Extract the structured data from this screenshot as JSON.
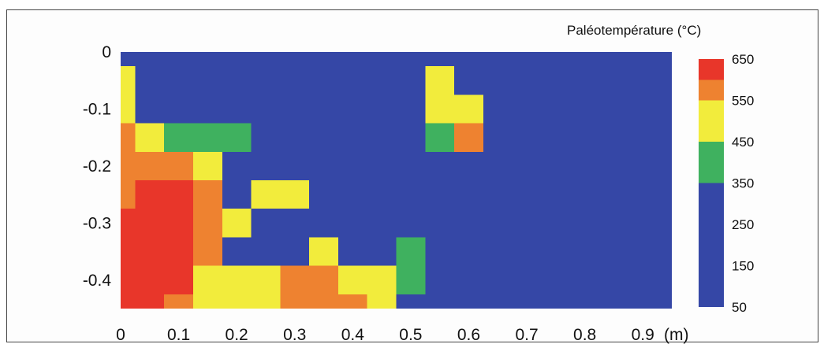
{
  "chart_data": {
    "type": "heatmap",
    "title": "",
    "xlabel": "",
    "ylabel": "",
    "x_unit": "(m)",
    "x_ticks": [
      0,
      0.1,
      0.2,
      0.3,
      0.4,
      0.5,
      0.6,
      0.7,
      0.8,
      0.9
    ],
    "x_tick_labels": [
      "0",
      "0.1",
      "0.2",
      "0.3",
      "0.4",
      "0.5",
      "0.6",
      "0.7",
      "0.8",
      "0.9"
    ],
    "y_ticks": [
      0,
      -0.1,
      -0.2,
      -0.3,
      -0.4
    ],
    "y_tick_labels": [
      "0",
      "-0.1",
      "-0.2",
      "-0.3",
      "-0.4"
    ],
    "xlim": [
      0,
      0.95
    ],
    "ylim": [
      -0.45,
      0
    ],
    "background_value": 200,
    "colorbar": {
      "title": "Paléotempérature (°C)",
      "ticks": [
        650,
        550,
        450,
        350,
        250,
        150,
        50
      ],
      "bands": [
        {
          "min": 50,
          "max": 350,
          "color": "#3547a6"
        },
        {
          "min": 350,
          "max": 450,
          "color": "#3fb15f"
        },
        {
          "min": 450,
          "max": 550,
          "color": "#f2ec3c"
        },
        {
          "min": 550,
          "max": 600,
          "color": "#ee8230"
        },
        {
          "min": 600,
          "max": 650,
          "color": "#e8362a"
        }
      ]
    },
    "cells": [
      {
        "x0": 0.0,
        "x1": 0.025,
        "y0": -0.025,
        "y1": -0.075,
        "value": 500
      },
      {
        "x0": 0.0,
        "x1": 0.025,
        "y0": -0.075,
        "y1": -0.125,
        "value": 500
      },
      {
        "x0": 0.0,
        "x1": 0.025,
        "y0": -0.125,
        "y1": -0.175,
        "value": 570
      },
      {
        "x0": 0.025,
        "x1": 0.075,
        "y0": -0.125,
        "y1": -0.175,
        "value": 500
      },
      {
        "x0": 0.075,
        "x1": 0.225,
        "y0": -0.125,
        "y1": -0.175,
        "value": 400
      },
      {
        "x0": 0.0,
        "x1": 0.125,
        "y0": -0.175,
        "y1": -0.225,
        "value": 570
      },
      {
        "x0": 0.125,
        "x1": 0.175,
        "y0": -0.175,
        "y1": -0.225,
        "value": 500
      },
      {
        "x0": 0.0,
        "x1": 0.025,
        "y0": -0.225,
        "y1": -0.275,
        "value": 570
      },
      {
        "x0": 0.025,
        "x1": 0.125,
        "y0": -0.225,
        "y1": -0.425,
        "value": 630
      },
      {
        "x0": 0.125,
        "x1": 0.175,
        "y0": -0.225,
        "y1": -0.375,
        "value": 570
      },
      {
        "x0": 0.225,
        "x1": 0.325,
        "y0": -0.225,
        "y1": -0.275,
        "value": 500
      },
      {
        "x0": 0.175,
        "x1": 0.225,
        "y0": -0.275,
        "y1": -0.325,
        "value": 500
      },
      {
        "x0": 0.0,
        "x1": 0.025,
        "y0": -0.275,
        "y1": -0.45,
        "value": 630
      },
      {
        "x0": 0.325,
        "x1": 0.375,
        "y0": -0.325,
        "y1": -0.375,
        "value": 500
      },
      {
        "x0": 0.475,
        "x1": 0.525,
        "y0": -0.325,
        "y1": -0.425,
        "value": 400
      },
      {
        "x0": 0.125,
        "x1": 0.275,
        "y0": -0.375,
        "y1": -0.45,
        "value": 500
      },
      {
        "x0": 0.275,
        "x1": 0.375,
        "y0": -0.375,
        "y1": -0.45,
        "value": 570
      },
      {
        "x0": 0.375,
        "x1": 0.475,
        "y0": -0.375,
        "y1": -0.425,
        "value": 500
      },
      {
        "x0": 0.025,
        "x1": 0.075,
        "y0": -0.425,
        "y1": -0.45,
        "value": 630
      },
      {
        "x0": 0.075,
        "x1": 0.125,
        "y0": -0.425,
        "y1": -0.45,
        "value": 570
      },
      {
        "x0": 0.375,
        "x1": 0.425,
        "y0": -0.425,
        "y1": -0.45,
        "value": 570
      },
      {
        "x0": 0.425,
        "x1": 0.475,
        "y0": -0.425,
        "y1": -0.45,
        "value": 500
      },
      {
        "x0": 0.525,
        "x1": 0.575,
        "y0": -0.025,
        "y1": -0.075,
        "value": 500
      },
      {
        "x0": 0.525,
        "x1": 0.625,
        "y0": -0.075,
        "y1": -0.125,
        "value": 500
      },
      {
        "x0": 0.525,
        "x1": 0.575,
        "y0": -0.125,
        "y1": -0.175,
        "value": 400
      },
      {
        "x0": 0.575,
        "x1": 0.625,
        "y0": -0.125,
        "y1": -0.175,
        "value": 570
      }
    ]
  }
}
